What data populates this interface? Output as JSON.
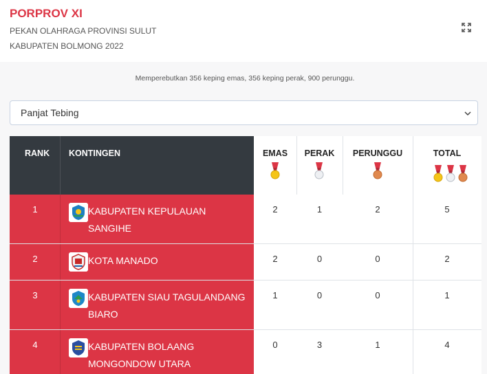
{
  "header": {
    "title": "PORPROV XI",
    "subtitle1": "PEKAN OLAHRAGA PROVINSI SULUT",
    "subtitle2": "KABUPATEN BOLMONG 2022",
    "expand_icon": "expand-icon"
  },
  "intro": "Memperebutkan 356 keping emas, 356 keping perak, 900 perunggu.",
  "filter": {
    "selected": "Panjat Tebing"
  },
  "table": {
    "columns": [
      "RANK",
      "KONTINGEN",
      "EMAS",
      "PERAK",
      "PERUNGGU",
      "TOTAL"
    ],
    "rows": [
      {
        "rank": "1",
        "name": "KABUPATEN KEPULAUAN SANGIHE",
        "emas": "2",
        "perak": "1",
        "perunggu": "2",
        "total": "5"
      },
      {
        "rank": "2",
        "name": "KOTA MANADO",
        "emas": "2",
        "perak": "0",
        "perunggu": "0",
        "total": "2"
      },
      {
        "rank": "3",
        "name": "KABUPATEN SIAU TAGULANDANG BIARO",
        "emas": "1",
        "perak": "0",
        "perunggu": "0",
        "total": "1"
      },
      {
        "rank": "4",
        "name": "KABUPATEN BOLAANG MONGONDOW UTARA",
        "emas": "0",
        "perak": "3",
        "perunggu": "1",
        "total": "4"
      }
    ]
  },
  "colors": {
    "accent": "#dc3545",
    "header_dark": "#343a40",
    "gold": "#f5c518",
    "silver": "#dfe3e8",
    "bronze": "#e0894f"
  }
}
